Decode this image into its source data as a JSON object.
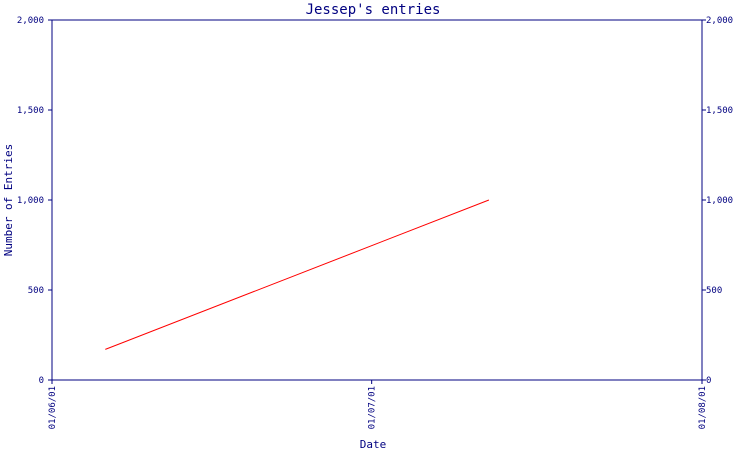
{
  "chart_data": {
    "type": "line",
    "title": "Jessep's entries",
    "xlabel": "Date",
    "ylabel": "Number of Entries",
    "x_ticks": [
      "01/06/01",
      "01/07/01",
      "01/08/01"
    ],
    "y_ticks": [
      "0",
      "500",
      "1,000",
      "1,500",
      "2,000"
    ],
    "y_tick_values": [
      0,
      500,
      1000,
      1500,
      2000
    ],
    "ylim": [
      0,
      2000
    ],
    "xlim": [
      "2001-06-01",
      "2001-08-01"
    ],
    "grid": false,
    "series": [
      {
        "color": "#ff0000",
        "x": [
          "2001-06-06",
          "2001-07-12"
        ],
        "y": [
          170,
          1000
        ]
      }
    ],
    "colors": {
      "axis": "#000080",
      "text": "#000080",
      "series": "#ff0000",
      "background": "#ffffff"
    }
  }
}
